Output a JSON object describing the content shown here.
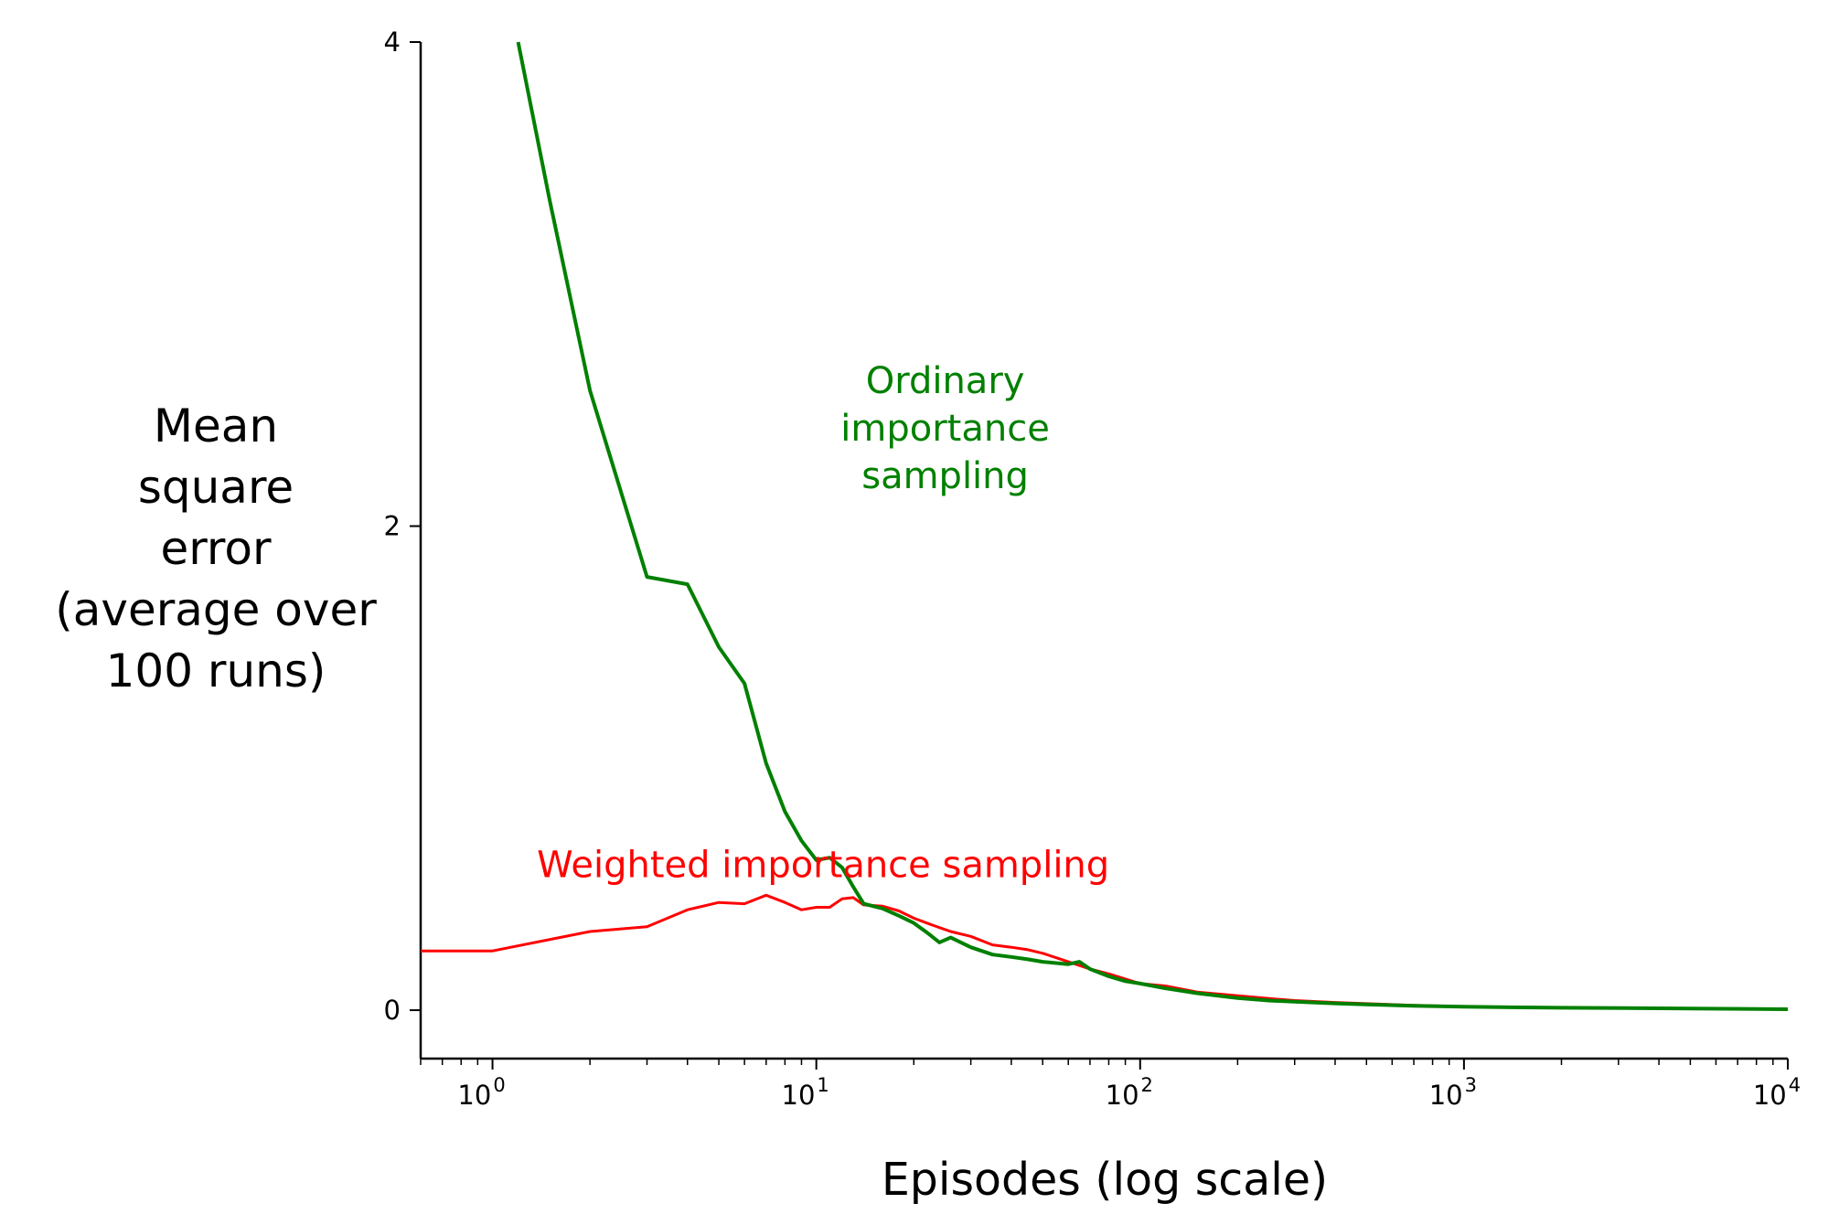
{
  "chart_data": {
    "type": "line",
    "xscale": "log",
    "xlim": [
      0.6,
      10000
    ],
    "ylim": [
      -0.2,
      4
    ],
    "xlabel": "Episodes (log scale)",
    "ylabel": [
      "Mean",
      "square",
      "error",
      "(average over",
      "100 runs)"
    ],
    "yticks": [
      0,
      2,
      4
    ],
    "xticks": [
      {
        "value": 1,
        "base": "10",
        "exp": "0"
      },
      {
        "value": 10,
        "base": "10",
        "exp": "1"
      },
      {
        "value": 100,
        "base": "10",
        "exp": "2"
      },
      {
        "value": 1000,
        "base": "10",
        "exp": "3"
      },
      {
        "value": 10000,
        "base": "10",
        "exp": "4"
      }
    ],
    "grid": false,
    "series": [
      {
        "name": "Weighted importance sampling",
        "color": "#ff0000",
        "stroke": 3,
        "points": [
          [
            0.6,
            0.245
          ],
          [
            1,
            0.245
          ],
          [
            2,
            0.325
          ],
          [
            3,
            0.345
          ],
          [
            4,
            0.415
          ],
          [
            5,
            0.445
          ],
          [
            6,
            0.44
          ],
          [
            7,
            0.475
          ],
          [
            8,
            0.445
          ],
          [
            9,
            0.415
          ],
          [
            10,
            0.425
          ],
          [
            11,
            0.425
          ],
          [
            12,
            0.46
          ],
          [
            13,
            0.465
          ],
          [
            14,
            0.435
          ],
          [
            16,
            0.43
          ],
          [
            18,
            0.41
          ],
          [
            20,
            0.38
          ],
          [
            23,
            0.35
          ],
          [
            26,
            0.325
          ],
          [
            30,
            0.305
          ],
          [
            35,
            0.27
          ],
          [
            40,
            0.26
          ],
          [
            45,
            0.25
          ],
          [
            50,
            0.235
          ],
          [
            60,
            0.2
          ],
          [
            70,
            0.17
          ],
          [
            80,
            0.15
          ],
          [
            100,
            0.11
          ],
          [
            120,
            0.1
          ],
          [
            150,
            0.075
          ],
          [
            200,
            0.06
          ],
          [
            250,
            0.048
          ],
          [
            300,
            0.04
          ],
          [
            400,
            0.032
          ],
          [
            500,
            0.027
          ],
          [
            700,
            0.02
          ],
          [
            1000,
            0.015
          ],
          [
            2000,
            0.01
          ],
          [
            5000,
            0.007
          ],
          [
            10000,
            0.005
          ]
        ]
      },
      {
        "name": "Ordinary importance sampling",
        "color": "#008000",
        "stroke": 4,
        "points": [
          [
            1.2,
            4.0
          ],
          [
            1.5,
            3.35
          ],
          [
            2,
            2.56
          ],
          [
            3,
            1.79
          ],
          [
            4,
            1.76
          ],
          [
            5,
            1.5
          ],
          [
            6,
            1.35
          ],
          [
            7,
            1.02
          ],
          [
            8,
            0.82
          ],
          [
            9,
            0.7
          ],
          [
            10,
            0.62
          ],
          [
            11,
            0.63
          ],
          [
            12,
            0.59
          ],
          [
            13,
            0.51
          ],
          [
            14,
            0.44
          ],
          [
            16,
            0.42
          ],
          [
            18,
            0.39
          ],
          [
            20,
            0.36
          ],
          [
            22,
            0.32
          ],
          [
            24,
            0.28
          ],
          [
            26,
            0.3
          ],
          [
            30,
            0.26
          ],
          [
            35,
            0.23
          ],
          [
            40,
            0.22
          ],
          [
            45,
            0.21
          ],
          [
            50,
            0.2
          ],
          [
            60,
            0.19
          ],
          [
            65,
            0.2
          ],
          [
            70,
            0.17
          ],
          [
            80,
            0.14
          ],
          [
            90,
            0.12
          ],
          [
            100,
            0.11
          ],
          [
            120,
            0.09
          ],
          [
            150,
            0.07
          ],
          [
            200,
            0.05
          ],
          [
            250,
            0.04
          ],
          [
            300,
            0.035
          ],
          [
            400,
            0.028
          ],
          [
            500,
            0.024
          ],
          [
            700,
            0.018
          ],
          [
            1000,
            0.014
          ],
          [
            2000,
            0.01
          ],
          [
            5000,
            0.007
          ],
          [
            10000,
            0.004
          ]
        ]
      }
    ],
    "annotations": [
      {
        "lines": [
          "Ordinary",
          "importance",
          "sampling"
        ],
        "color": "#008000",
        "anchor_x": 25,
        "anchor_y": 2.55
      },
      {
        "lines": [
          "Weighted importance sampling"
        ],
        "color": "#ff0000",
        "anchor_x": 10.5,
        "anchor_y": 0.55
      }
    ]
  }
}
